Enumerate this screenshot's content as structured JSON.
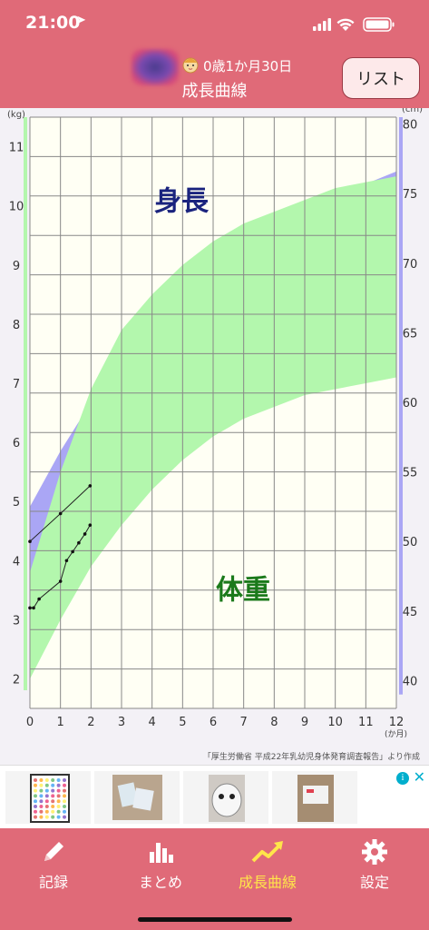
{
  "status_bar": {
    "time": "21:00"
  },
  "header": {
    "age": "0歳1か月30日",
    "title": "成長曲線",
    "list_button": "リスト"
  },
  "chart": {
    "height_label": "身長",
    "weight_label": "体重",
    "left_unit": "(kg)",
    "right_unit": "(cm)",
    "x_unit": "(か月)",
    "source_note": "「厚生労働省 平成22年乳幼児身体発育調査報告」より作成",
    "colors": {
      "height_band": "#aaa6f5",
      "weight_band": "#b3f7ad",
      "left_axis_bar": "#b3f7ad",
      "right_axis_bar": "#aaa6f5",
      "height_title": "#1a237e",
      "weight_title": "#1b7a1b"
    }
  },
  "chart_data": {
    "type": "line",
    "x_label": "(か月)",
    "x_ticks": [
      0,
      1,
      2,
      3,
      4,
      5,
      6,
      7,
      8,
      9,
      10,
      11,
      12
    ],
    "xlim": [
      0,
      12
    ],
    "grid": true,
    "left_axis": {
      "label": "(kg)",
      "ticks": [
        2,
        3,
        4,
        5,
        6,
        7,
        8,
        9,
        10,
        11
      ],
      "ylim": [
        1.5,
        11.5
      ]
    },
    "right_axis": {
      "label": "(cm)",
      "ticks": [
        40,
        45,
        50,
        55,
        60,
        65,
        70,
        75,
        80
      ],
      "ylim": [
        38,
        80.5
      ]
    },
    "height_band": {
      "x": [
        0,
        1,
        2,
        3,
        4,
        5,
        6,
        7,
        8,
        9,
        10,
        11,
        12
      ],
      "lower": [
        44.0,
        48.8,
        52.8,
        55.8,
        58.2,
        60.2,
        61.9,
        63.4,
        64.7,
        65.9,
        66.9,
        67.8,
        68.6
      ],
      "upper": [
        52.5,
        56.5,
        60.0,
        63.0,
        65.5,
        67.6,
        69.4,
        71.0,
        72.4,
        73.6,
        74.7,
        75.7,
        76.6
      ]
    },
    "weight_band": {
      "x": [
        0,
        1,
        2,
        3,
        4,
        5,
        6,
        7,
        8,
        9,
        10,
        11,
        12
      ],
      "lower": [
        2.0,
        3.0,
        3.9,
        4.6,
        5.2,
        5.7,
        6.1,
        6.4,
        6.6,
        6.8,
        6.9,
        7.0,
        7.1
      ],
      "upper": [
        3.8,
        5.5,
        6.9,
        7.9,
        8.5,
        9.0,
        9.4,
        9.7,
        9.9,
        10.1,
        10.3,
        10.4,
        10.5
      ]
    },
    "series": [
      {
        "name": "身長",
        "axis": "right",
        "x": [
          0,
          1,
          1.97
        ],
        "y": [
          50.0,
          52.0,
          54.0
        ]
      },
      {
        "name": "体重",
        "axis": "left",
        "x": [
          0,
          0.12,
          0.3,
          1.0,
          1.2,
          1.4,
          1.6,
          1.8,
          1.97
        ],
        "y": [
          3.2,
          3.2,
          3.35,
          3.65,
          4.0,
          4.15,
          4.3,
          4.45,
          4.6
        ]
      }
    ]
  },
  "ad": {
    "info_icon": "info-icon",
    "close_icon": "close-icon"
  },
  "tabs": [
    {
      "label": "記録",
      "icon": "pencil-icon",
      "active": false
    },
    {
      "label": "まとめ",
      "icon": "bar-chart-icon",
      "active": false
    },
    {
      "label": "成長曲線",
      "icon": "trend-icon",
      "active": true
    },
    {
      "label": "設定",
      "icon": "gear-icon",
      "active": false
    }
  ]
}
